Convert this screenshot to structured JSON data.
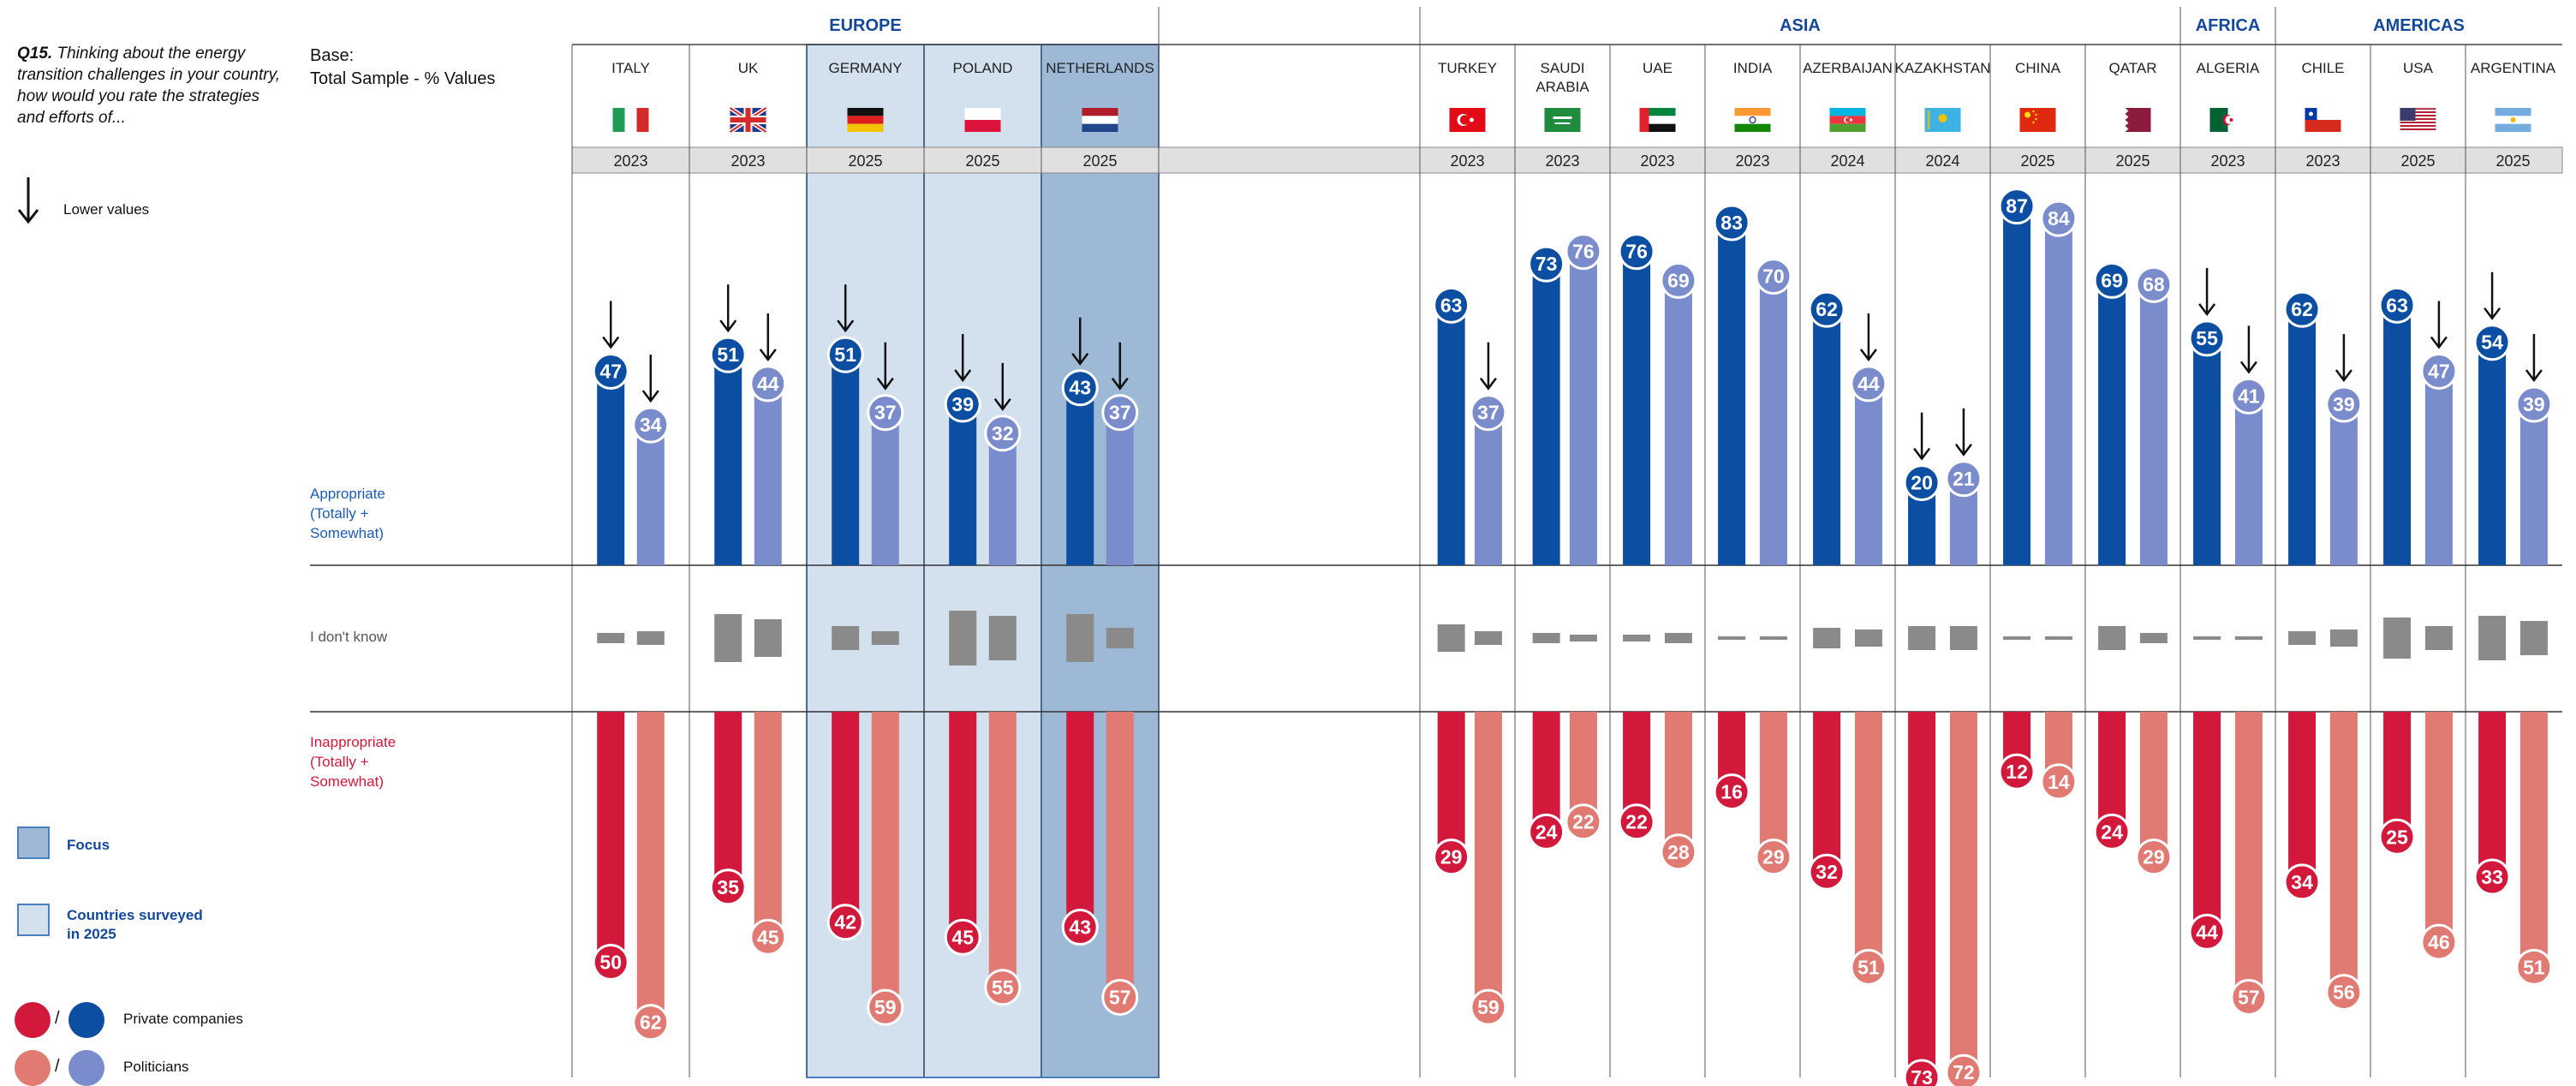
{
  "question": {
    "number": "Q15.",
    "text": "Thinking about the energy transition challenges in your country, how would you rate the strategies and efforts of..."
  },
  "base": {
    "line1": "Base:",
    "line2": "Total Sample - % Values"
  },
  "lower_values_label": "Lower values",
  "row_labels": {
    "appropriate": [
      "Appropriate",
      "(Totally +",
      "Somewhat)"
    ],
    "dont_know": "I don't know",
    "inappropriate": [
      "Inappropriate",
      "(Totally +",
      "Somewhat)"
    ]
  },
  "legend": {
    "focus": "Focus",
    "surveyed": [
      "Countries surveyed",
      "in 2025"
    ],
    "slash": "/",
    "private": "Private companies",
    "politicians": "Politicians"
  },
  "colors": {
    "private_appropriate": "#0b4ea2",
    "politicians_appropriate": "#7a8ccb",
    "private_inappropriate": "#d2193c",
    "politicians_inappropriate": "#e07a72",
    "dont_know": "#8a8a8a",
    "focus_fill": "#9db9d6",
    "surveyed_fill": "#d3e0ed",
    "year_row": "#e0e0e0"
  },
  "chart_data": {
    "type": "bar",
    "title": "",
    "series": [
      {
        "name": "Private companies"
      },
      {
        "name": "Politicians"
      }
    ],
    "regions": [
      {
        "name": "EUROPE",
        "countries": [
          "ITALY",
          "UK",
          "GERMANY",
          "POLAND",
          "NETHERLANDS"
        ]
      },
      {
        "name": "ASIA",
        "countries": [
          "TURKEY",
          "SAUDI ARABIA",
          "UAE",
          "INDIA",
          "AZERBAIJAN",
          "KAZAKHSTAN",
          "CHINA",
          "QATAR"
        ]
      },
      {
        "name": "AFRICA",
        "countries": [
          "ALGERIA"
        ]
      },
      {
        "name": "AMERICAS",
        "countries": [
          "CHILE",
          "USA",
          "ARGENTINA"
        ]
      }
    ],
    "countries": [
      {
        "name": "ITALY",
        "flag": "italy-flag",
        "year": "2023",
        "highlight": "none",
        "appropriate": [
          47,
          34
        ],
        "arrows": [
          true,
          true
        ],
        "dont_know": [
          3,
          4
        ],
        "inappropriate": [
          50,
          62
        ]
      },
      {
        "name": "UK",
        "flag": "uk-flag",
        "year": "2023",
        "highlight": "none",
        "appropriate": [
          51,
          44
        ],
        "arrows": [
          true,
          true
        ],
        "dont_know": [
          14,
          11
        ],
        "inappropriate": [
          35,
          45
        ]
      },
      {
        "name": "GERMANY",
        "flag": "germany-flag",
        "year": "2025",
        "highlight": "surveyed",
        "appropriate": [
          51,
          37
        ],
        "arrows": [
          true,
          true
        ],
        "dont_know": [
          7,
          4
        ],
        "inappropriate": [
          42,
          59
        ]
      },
      {
        "name": "POLAND",
        "flag": "poland-flag",
        "year": "2025",
        "highlight": "surveyed",
        "appropriate": [
          39,
          32
        ],
        "arrows": [
          true,
          true
        ],
        "dont_know": [
          16,
          13
        ],
        "inappropriate": [
          45,
          55
        ]
      },
      {
        "name": "NETHERLANDS",
        "flag": "netherlands-flag",
        "year": "2025",
        "highlight": "focus",
        "appropriate": [
          43,
          37
        ],
        "arrows": [
          true,
          true
        ],
        "dont_know": [
          14,
          6
        ],
        "inappropriate": [
          43,
          57
        ]
      },
      {
        "name": "TURKEY",
        "flag": "turkey-flag",
        "year": "2023",
        "highlight": "none",
        "appropriate": [
          63,
          37
        ],
        "arrows": [
          false,
          true
        ],
        "dont_know": [
          8,
          4
        ],
        "inappropriate": [
          29,
          59
        ]
      },
      {
        "name": "SAUDI ARABIA",
        "flag": "saudi-arabia-flag",
        "year": "2023",
        "highlight": "none",
        "appropriate": [
          73,
          76
        ],
        "arrows": [
          false,
          false
        ],
        "dont_know": [
          3,
          2
        ],
        "inappropriate": [
          24,
          22
        ]
      },
      {
        "name": "UAE",
        "flag": "uae-flag",
        "year": "2023",
        "highlight": "none",
        "appropriate": [
          76,
          69
        ],
        "arrows": [
          false,
          false
        ],
        "dont_know": [
          2,
          3
        ],
        "inappropriate": [
          22,
          28
        ]
      },
      {
        "name": "INDIA",
        "flag": "india-flag",
        "year": "2023",
        "highlight": "none",
        "appropriate": [
          83,
          70
        ],
        "arrows": [
          false,
          false
        ],
        "dont_know": [
          1,
          1
        ],
        "inappropriate": [
          16,
          29
        ]
      },
      {
        "name": "AZERBAIJAN",
        "flag": "azerbaijan-flag",
        "year": "2024",
        "highlight": "none",
        "appropriate": [
          62,
          44
        ],
        "arrows": [
          false,
          true
        ],
        "dont_know": [
          6,
          5
        ],
        "inappropriate": [
          32,
          51
        ]
      },
      {
        "name": "KAZAKHSTAN",
        "flag": "kazakhstan-flag",
        "year": "2024",
        "highlight": "none",
        "appropriate": [
          20,
          21
        ],
        "arrows": [
          true,
          true
        ],
        "dont_know": [
          7,
          7
        ],
        "inappropriate": [
          73,
          72
        ]
      },
      {
        "name": "CHINA",
        "flag": "china-flag",
        "year": "2025",
        "highlight": "none",
        "appropriate": [
          87,
          84
        ],
        "arrows": [
          false,
          false
        ],
        "dont_know": [
          1,
          1
        ],
        "inappropriate": [
          12,
          14
        ]
      },
      {
        "name": "QATAR",
        "flag": "qatar-flag",
        "year": "2025",
        "highlight": "none",
        "appropriate": [
          69,
          68
        ],
        "arrows": [
          false,
          false
        ],
        "dont_know": [
          7,
          3
        ],
        "inappropriate": [
          24,
          29
        ]
      },
      {
        "name": "ALGERIA",
        "flag": "algeria-flag",
        "year": "2023",
        "highlight": "none",
        "appropriate": [
          55,
          41
        ],
        "arrows": [
          true,
          true
        ],
        "dont_know": [
          1,
          1
        ],
        "inappropriate": [
          44,
          57
        ]
      },
      {
        "name": "CHILE",
        "flag": "chile-flag",
        "year": "2023",
        "highlight": "none",
        "appropriate": [
          62,
          39
        ],
        "arrows": [
          false,
          true
        ],
        "dont_know": [
          4,
          5
        ],
        "inappropriate": [
          34,
          56
        ]
      },
      {
        "name": "USA",
        "flag": "usa-flag",
        "year": "2025",
        "highlight": "none",
        "appropriate": [
          63,
          47
        ],
        "arrows": [
          false,
          true
        ],
        "dont_know": [
          12,
          7
        ],
        "inappropriate": [
          25,
          46
        ]
      },
      {
        "name": "ARGENTINA",
        "flag": "argentina-flag",
        "year": "2025",
        "highlight": "none",
        "appropriate": [
          54,
          39
        ],
        "arrows": [
          true,
          true
        ],
        "dont_know": [
          13,
          10
        ],
        "inappropriate": [
          33,
          51
        ]
      }
    ]
  }
}
